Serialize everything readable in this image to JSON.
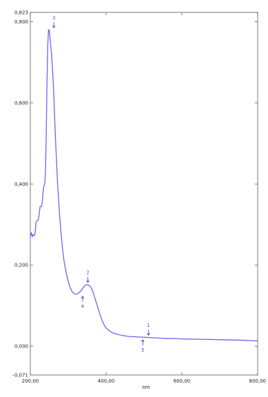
{
  "chart_data": {
    "type": "line",
    "title": "",
    "xlabel": "nm",
    "ylabel": "",
    "xlim": [
      200,
      800
    ],
    "ylim": [
      -0.071,
      0.823
    ],
    "grid": false,
    "legend": "none",
    "x_ticks": [
      200,
      400,
      600,
      800
    ],
    "x_tick_labels": [
      "200,00",
      "400,00",
      "600,00",
      "800,00"
    ],
    "y_ticks": [
      -0.071,
      0.0,
      0.2,
      0.4,
      0.6,
      0.8,
      0.823
    ],
    "y_tick_labels": [
      "-0,071",
      "0,000",
      "0,200",
      "0,400",
      "0,600",
      "0,800",
      "0,823"
    ],
    "line_color": "#7b5cf0",
    "marker_color": "#5a3fd6",
    "series": [
      {
        "x": [
          200,
          203,
          205,
          208,
          210,
          213,
          215,
          218,
          220,
          222,
          224,
          226,
          228,
          230,
          232,
          234,
          236,
          238,
          240,
          242,
          244,
          246,
          248,
          250,
          252,
          254,
          256,
          258,
          260,
          262,
          264,
          266,
          268,
          270,
          272,
          274,
          276,
          278,
          280,
          282,
          284,
          286,
          288,
          290,
          292,
          295,
          300,
          305,
          310,
          315,
          320,
          325,
          330,
          335,
          340,
          345,
          350,
          355,
          360,
          365,
          370,
          375,
          380,
          385,
          390,
          395,
          400,
          410,
          420,
          430,
          440,
          460,
          480,
          500,
          520,
          540,
          560,
          580,
          600,
          650,
          700,
          750,
          800
        ],
        "y": [
          0.27,
          0.28,
          0.27,
          0.275,
          0.272,
          0.28,
          0.305,
          0.31,
          0.31,
          0.315,
          0.33,
          0.345,
          0.345,
          0.345,
          0.36,
          0.385,
          0.395,
          0.4,
          0.43,
          0.52,
          0.65,
          0.74,
          0.78,
          0.78,
          0.76,
          0.74,
          0.72,
          0.69,
          0.66,
          0.62,
          0.57,
          0.52,
          0.48,
          0.44,
          0.4,
          0.37,
          0.34,
          0.315,
          0.29,
          0.27,
          0.25,
          0.232,
          0.217,
          0.205,
          0.195,
          0.18,
          0.16,
          0.145,
          0.135,
          0.13,
          0.128,
          0.13,
          0.133,
          0.138,
          0.145,
          0.15,
          0.152,
          0.15,
          0.145,
          0.135,
          0.12,
          0.105,
          0.09,
          0.075,
          0.062,
          0.052,
          0.045,
          0.037,
          0.032,
          0.029,
          0.027,
          0.024,
          0.023,
          0.022,
          0.021,
          0.02,
          0.019,
          0.019,
          0.018,
          0.017,
          0.016,
          0.015,
          0.013
        ]
      }
    ],
    "peaks": [
      {
        "label": "3",
        "x": 262,
        "y": 0.78,
        "type": "max"
      },
      {
        "label": "2",
        "x": 352,
        "y": 0.152,
        "type": "max"
      },
      {
        "label": "1",
        "x": 512,
        "y": 0.022,
        "type": "max"
      },
      {
        "label": "4",
        "x": 338,
        "y": 0.128,
        "type": "min"
      },
      {
        "label": "5",
        "x": 497,
        "y": 0.021,
        "type": "min"
      }
    ]
  }
}
